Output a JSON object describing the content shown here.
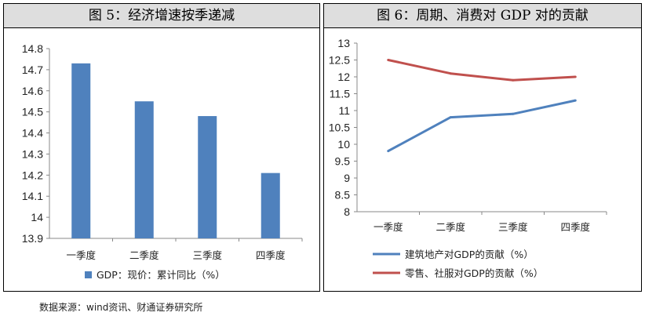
{
  "chart_data": [
    {
      "type": "bar",
      "title": "图 5：经济增速按季递减",
      "categories": [
        "一季度",
        "二季度",
        "三季度",
        "四季度"
      ],
      "series": [
        {
          "name": "GDP：现价：累计同比（%）",
          "values": [
            14.73,
            14.55,
            14.48,
            14.21
          ],
          "color": "#4f81bd"
        }
      ],
      "ylim": [
        13.9,
        14.8
      ],
      "yticks": [
        "13.9",
        "14",
        "14.1",
        "14.2",
        "14.3",
        "14.4",
        "14.5",
        "14.6",
        "14.7",
        "14.8"
      ],
      "grid": false,
      "legend": "bottom"
    },
    {
      "type": "line",
      "title": "图 6：周期、消费对 GDP 对的贡献",
      "categories": [
        "一季度",
        "二季度",
        "三季度",
        "四季度"
      ],
      "series": [
        {
          "name": "建筑地产对GDP的贡献（%）",
          "values": [
            9.8,
            10.8,
            10.9,
            11.3
          ],
          "color": "#4f81bd"
        },
        {
          "name": "零售、社服对GDP的贡献（%）",
          "values": [
            12.5,
            12.1,
            11.9,
            12.0
          ],
          "color": "#c0504d"
        }
      ],
      "ylim": [
        8,
        13
      ],
      "yticks": [
        "8",
        "8.5",
        "9",
        "9.5",
        "10",
        "10.5",
        "11",
        "11.5",
        "12",
        "12.5",
        "13"
      ],
      "grid": false,
      "legend": "bottom"
    }
  ],
  "source": "数据来源：wind资讯、财通证券研究所"
}
